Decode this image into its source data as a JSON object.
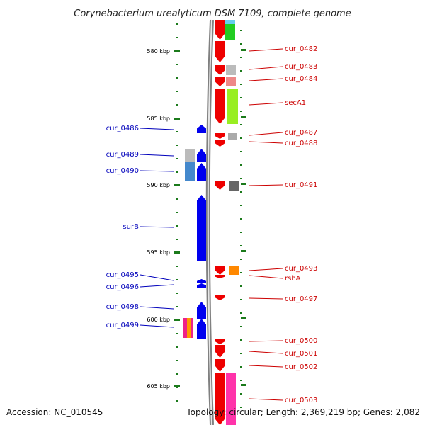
{
  "title": "Corynebacterium urealyticum DSM 7109, complete genome",
  "footer": {
    "accession": "Accession: NC_010545",
    "topology": "Topology: circular; Length: 2,369,219 bp; Genes: 2,082"
  },
  "colors": {
    "left_label": "#0000bb",
    "right_label": "#cc0000",
    "tick": "#1b7a1b",
    "backbone": "#8a8a8a"
  },
  "scale_labels": [
    "580 kbp",
    "585 kbp",
    "590 kbp",
    "595 kbp",
    "600 kbp",
    "605 kbp"
  ],
  "left_genes": [
    {
      "label": "cur_0486"
    },
    {
      "label": "cur_0489"
    },
    {
      "label": "cur_0490"
    },
    {
      "label": "surB"
    },
    {
      "label": "cur_0495"
    },
    {
      "label": "cur_0496"
    },
    {
      "label": "cur_0498"
    },
    {
      "label": "cur_0499"
    }
  ],
  "right_genes": [
    {
      "label": "cur_0482"
    },
    {
      "label": "cur_0483"
    },
    {
      "label": "cur_0484"
    },
    {
      "label": "secA1"
    },
    {
      "label": "cur_0487"
    },
    {
      "label": "cur_0488"
    },
    {
      "label": "cur_0491"
    },
    {
      "label": "cur_0493"
    },
    {
      "label": "rshA"
    },
    {
      "label": "cur_0497"
    },
    {
      "label": "cur_0500"
    },
    {
      "label": "cur_0501"
    },
    {
      "label": "cur_0502"
    },
    {
      "label": "cur_0503"
    }
  ]
}
